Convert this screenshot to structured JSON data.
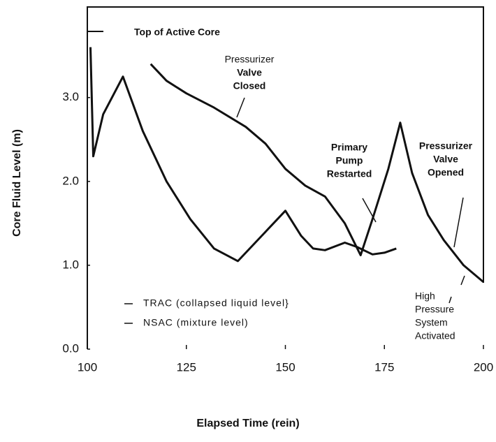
{
  "chart_data": {
    "type": "line",
    "xlabel": "Elapsed Time (rein)",
    "ylabel": "Core Fluid Level (m)",
    "xlim": [
      100,
      200
    ],
    "xticks": [
      100,
      125,
      150,
      175,
      200
    ],
    "ylim": [
      0,
      4.08
    ],
    "yticks": [
      {
        "value": 0,
        "label": "0.0"
      },
      {
        "value": 1,
        "label": "1.0"
      },
      {
        "value": 2,
        "label": "2.0"
      },
      {
        "value": 3,
        "label": "3.0"
      }
    ],
    "series": [
      {
        "name": "TRAC (collapsed liquid level}",
        "color": "#111111",
        "x": [
          100.8,
          101.5,
          104,
          109,
          114,
          120,
          126,
          132,
          138,
          144,
          150,
          154,
          157,
          160,
          165,
          168,
          172,
          175,
          178
        ],
        "values": [
          3.6,
          2.3,
          2.8,
          3.25,
          2.6,
          2.0,
          1.55,
          1.2,
          1.05,
          1.35,
          1.65,
          1.35,
          1.2,
          1.18,
          1.27,
          1.22,
          1.13,
          1.15,
          1.2
        ]
      },
      {
        "name": "NSAC (mixture level)",
        "color": "#111111",
        "x": [
          116,
          120,
          125,
          132,
          140,
          145,
          150,
          155,
          160,
          165,
          169,
          172,
          176,
          179,
          182,
          186,
          190,
          195,
          200
        ],
        "values": [
          3.4,
          3.2,
          3.05,
          2.88,
          2.65,
          2.45,
          2.15,
          1.95,
          1.82,
          1.5,
          1.12,
          1.55,
          2.15,
          2.7,
          2.1,
          1.6,
          1.3,
          1.0,
          0.8
        ]
      }
    ],
    "annotations": [
      {
        "lines": [
          "Top of Active Core"
        ]
      },
      {
        "lines": [
          "Pressurizer",
          "Valve",
          "Closed"
        ]
      },
      {
        "lines": [
          "Primary",
          "Pump",
          "Restarted"
        ]
      },
      {
        "lines": [
          "Pressurizer",
          "Valve",
          "Opened"
        ]
      },
      {
        "lines": [
          "High",
          "Pressure",
          "System",
          "Activated"
        ]
      }
    ]
  }
}
